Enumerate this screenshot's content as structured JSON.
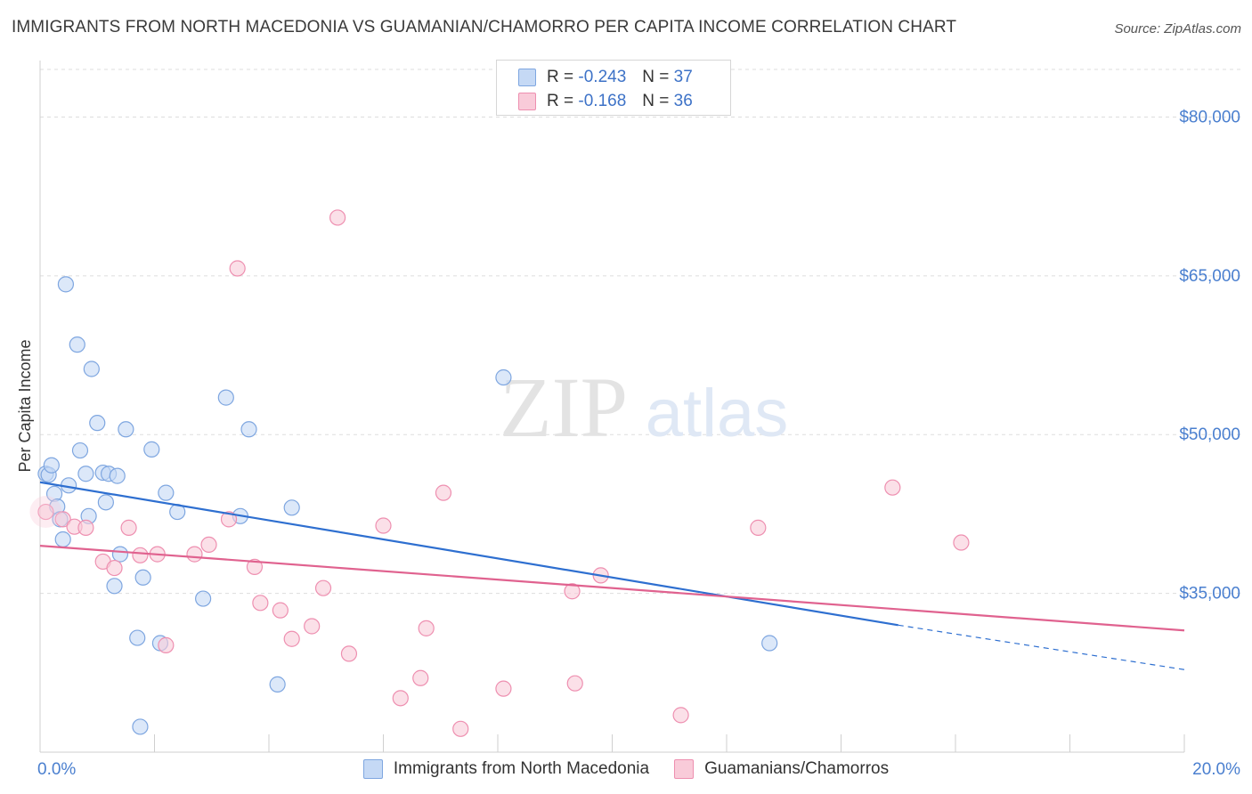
{
  "title": "IMMIGRANTS FROM NORTH MACEDONIA VS GUAMANIAN/CHAMORRO PER CAPITA INCOME CORRELATION CHART",
  "source": "Source: ZipAtlas.com",
  "watermark": {
    "zip": "ZIP",
    "atlas": "atlas"
  },
  "colors": {
    "blue_fill": "#c5d9f5",
    "blue_stroke": "#7ea6e0",
    "blue_line": "#2e6fd0",
    "pink_fill": "#f9cbd9",
    "pink_stroke": "#ee8fb0",
    "pink_line": "#e0628f",
    "axis_text": "#4a7fcf",
    "grid": "#dddddd"
  },
  "legend_top": [
    {
      "r_label": "R =",
      "r_value": "-0.243",
      "n_label": "N =",
      "n_value": "37"
    },
    {
      "r_label": "R =",
      "r_value": "-0.168",
      "n_label": "N =",
      "n_value": "36"
    }
  ],
  "chart_data": {
    "type": "scatter",
    "title": "IMMIGRANTS FROM NORTH MACEDONIA VS GUAMANIAN/CHAMORRO PER CAPITA INCOME CORRELATION CHART",
    "xlabel": "",
    "ylabel": "Per Capita Income",
    "xlim": [
      0,
      20
    ],
    "ylim": [
      20000,
      85000
    ],
    "x_tick_labels": [
      {
        "value": 0,
        "label": "0.0%"
      },
      {
        "value": 20,
        "label": "20.0%"
      }
    ],
    "y_tick_labels": [
      {
        "value": 35000,
        "label": "$35,000"
      },
      {
        "value": 50000,
        "label": "$50,000"
      },
      {
        "value": 65000,
        "label": "$65,000"
      },
      {
        "value": 80000,
        "label": "$80,000"
      }
    ],
    "series": [
      {
        "name": "Immigrants from North Macedonia",
        "color": "blue",
        "r": -0.243,
        "n": 37,
        "trend": {
          "x0": 0,
          "y0": 45500,
          "x1": 15,
          "y1": 32000,
          "dash_to_x": 20,
          "dash_to_y": 27800
        },
        "points": [
          [
            0.1,
            46300
          ],
          [
            0.15,
            46200
          ],
          [
            0.2,
            47100
          ],
          [
            0.25,
            44400
          ],
          [
            0.3,
            43200
          ],
          [
            0.35,
            42000
          ],
          [
            0.4,
            40100
          ],
          [
            0.45,
            64200
          ],
          [
            0.5,
            45200
          ],
          [
            0.65,
            58500
          ],
          [
            0.7,
            48500
          ],
          [
            0.8,
            46300
          ],
          [
            0.85,
            42300
          ],
          [
            0.9,
            56200
          ],
          [
            1.0,
            51100
          ],
          [
            1.1,
            46400
          ],
          [
            1.15,
            43600
          ],
          [
            1.2,
            46300
          ],
          [
            1.3,
            35700
          ],
          [
            1.35,
            46100
          ],
          [
            1.4,
            38700
          ],
          [
            1.5,
            50500
          ],
          [
            1.7,
            30800
          ],
          [
            1.75,
            22400
          ],
          [
            1.8,
            36500
          ],
          [
            1.95,
            48600
          ],
          [
            2.1,
            30300
          ],
          [
            2.2,
            44500
          ],
          [
            2.4,
            42700
          ],
          [
            2.85,
            34500
          ],
          [
            3.25,
            53500
          ],
          [
            3.5,
            42300
          ],
          [
            3.65,
            50500
          ],
          [
            4.15,
            26400
          ],
          [
            4.4,
            43100
          ],
          [
            8.1,
            55400
          ],
          [
            12.75,
            30300
          ]
        ]
      },
      {
        "name": "Guamanians/Chamorros",
        "color": "pink",
        "r": -0.168,
        "n": 36,
        "trend": {
          "x0": 0,
          "y0": 39500,
          "x1": 20,
          "y1": 31500
        },
        "points": [
          [
            0.1,
            42700
          ],
          [
            0.4,
            42000
          ],
          [
            0.6,
            41300
          ],
          [
            0.8,
            41200
          ],
          [
            1.1,
            38000
          ],
          [
            1.3,
            37400
          ],
          [
            1.55,
            41200
          ],
          [
            1.75,
            38600
          ],
          [
            2.05,
            38700
          ],
          [
            2.2,
            30100
          ],
          [
            2.7,
            38700
          ],
          [
            2.95,
            39600
          ],
          [
            3.3,
            42000
          ],
          [
            3.45,
            65700
          ],
          [
            3.75,
            37500
          ],
          [
            3.85,
            34100
          ],
          [
            4.2,
            33400
          ],
          [
            4.4,
            30700
          ],
          [
            4.75,
            31900
          ],
          [
            4.95,
            35500
          ],
          [
            5.2,
            70500
          ],
          [
            5.4,
            29300
          ],
          [
            6.0,
            41400
          ],
          [
            6.3,
            25100
          ],
          [
            6.65,
            27000
          ],
          [
            6.75,
            31700
          ],
          [
            7.05,
            44500
          ],
          [
            7.35,
            22200
          ],
          [
            8.1,
            26000
          ],
          [
            9.3,
            35200
          ],
          [
            9.35,
            26500
          ],
          [
            9.8,
            36700
          ],
          [
            11.2,
            23500
          ],
          [
            12.55,
            41200
          ],
          [
            14.9,
            45000
          ],
          [
            16.1,
            39800
          ]
        ]
      }
    ]
  },
  "legend_bottom": [
    {
      "label": "Immigrants from North Macedonia"
    },
    {
      "label": "Guamanians/Chamorros"
    }
  ]
}
